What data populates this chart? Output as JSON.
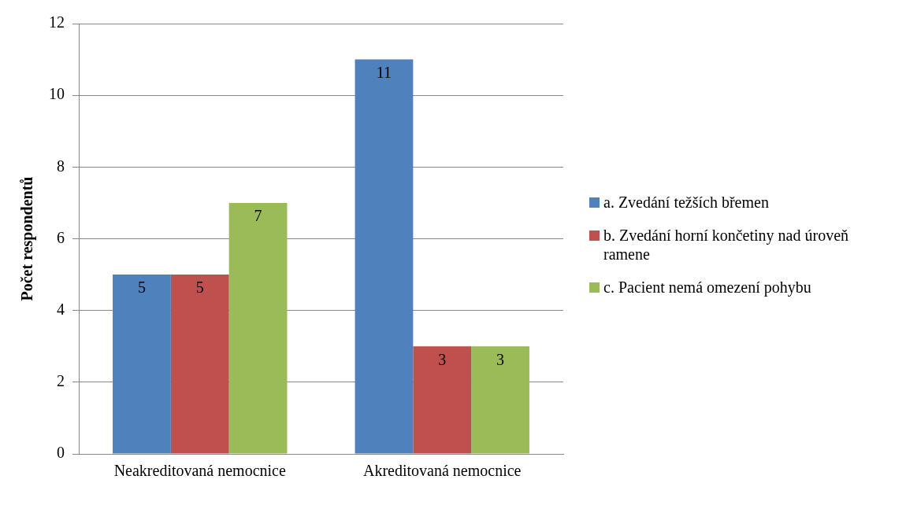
{
  "chart_data": {
    "type": "bar",
    "ylabel": "Počet respondentů",
    "categories": [
      "Neakreditovaná nemocnice",
      "Akreditovaná nemocnice"
    ],
    "series": [
      {
        "name": "a. Zvedání težších břemen",
        "color": "#4f81bd",
        "values": [
          5,
          11
        ]
      },
      {
        "name": "b. Zvedání horní končetiny nad úroveň ramene",
        "color": "#c0504d",
        "values": [
          5,
          3
        ]
      },
      {
        "name": "c. Pacient nemá omezení pohybu",
        "color": "#9bbb59",
        "values": [
          7,
          3
        ]
      }
    ],
    "ylim": [
      0,
      12
    ],
    "yticks": [
      0,
      2,
      4,
      6,
      8,
      10,
      12
    ],
    "grid": "y",
    "legend": "right",
    "data_labels": true
  }
}
